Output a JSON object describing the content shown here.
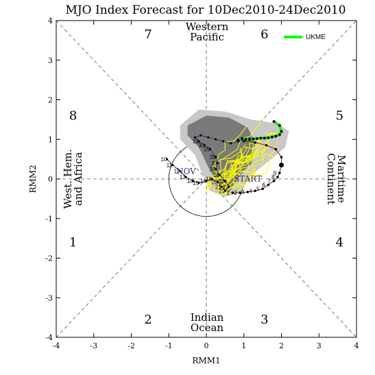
{
  "chart_data": {
    "type": "scatter",
    "title": "MJO Index Forecast for 10Dec2010-24Dec2010",
    "xlabel": "RMM1",
    "ylabel": "RMM2",
    "xlim": [
      -4,
      4
    ],
    "ylim": [
      -4,
      4
    ],
    "x_ticks": [
      "-4",
      "-3",
      "-2",
      "-1",
      "0",
      "1",
      "2",
      "3",
      "4"
    ],
    "y_ticks": [
      "-4",
      "-3",
      "-2",
      "-1",
      "0",
      "1",
      "2",
      "3",
      "4"
    ],
    "grid": "diagonal phase lines and zero axes (dashed)",
    "legend": {
      "position": "top-right",
      "entries": [
        {
          "name": "UKME",
          "color": "#00ff00"
        }
      ]
    },
    "phases": [
      {
        "label": "1",
        "x": -3.55,
        "y": -1.6
      },
      {
        "label": "2",
        "x": -1.55,
        "y": -3.55
      },
      {
        "label": "3",
        "x": 1.55,
        "y": -3.55
      },
      {
        "label": "4",
        "x": 3.55,
        "y": -1.6
      },
      {
        "label": "5",
        "x": 3.55,
        "y": 1.6
      },
      {
        "label": "6",
        "x": 1.55,
        "y": 3.65
      },
      {
        "label": "7",
        "x": -1.55,
        "y": 3.65
      },
      {
        "label": "8",
        "x": -3.55,
        "y": 1.6
      }
    ],
    "regions": {
      "top": [
        "Western",
        "Pacific"
      ],
      "bottom": [
        "Indian",
        "Ocean"
      ],
      "left": [
        "West. Hem.",
        "and Africa"
      ],
      "right": [
        "Maritime",
        "Continent"
      ]
    },
    "annotations": [
      "START",
      "NOV"
    ],
    "colors": {
      "observed": "#7a2020",
      "analysis": "#3a2a7a",
      "forecast": "#00ff00",
      "members": "#ffff00",
      "spread_outer": "#c8c8c8",
      "spread_inner": "#7a7a7a"
    },
    "series": [
      {
        "name": "UKME",
        "points": [
          [
            0.85,
            0.98
          ],
          [
            0.95,
            1.02
          ],
          [
            1.05,
            1.0
          ],
          [
            1.15,
            1.0
          ],
          [
            1.25,
            1.01
          ],
          [
            1.35,
            1.02
          ],
          [
            1.45,
            1.03
          ],
          [
            1.55,
            1.03
          ],
          [
            1.65,
            1.04
          ],
          [
            1.75,
            1.06
          ],
          [
            1.85,
            1.08
          ],
          [
            1.95,
            1.12
          ],
          [
            2.0,
            1.2
          ],
          [
            1.95,
            1.35
          ],
          [
            1.8,
            1.45
          ]
        ]
      }
    ],
    "observed_path": {
      "points": [
        [
          0.7,
          -0.35
        ],
        [
          0.9,
          -0.35
        ],
        [
          1.1,
          -0.33
        ],
        [
          1.3,
          -0.3
        ],
        [
          1.5,
          -0.25
        ],
        [
          1.65,
          -0.15
        ],
        [
          1.8,
          -0.05
        ],
        [
          1.9,
          0.05
        ],
        [
          1.95,
          0.15
        ],
        [
          2.0,
          0.35
        ],
        [
          2.0,
          0.55
        ],
        [
          1.85,
          0.75
        ],
        [
          1.6,
          0.85
        ],
        [
          1.3,
          0.92
        ],
        [
          1.0,
          0.96
        ]
      ],
      "labels": [
        "1",
        "2",
        "3",
        "4",
        "5",
        "6",
        "7",
        "8",
        "9"
      ]
    },
    "analysis_path": {
      "points": [
        [
          -1.05,
          0.5
        ],
        [
          -0.9,
          0.35
        ],
        [
          -0.7,
          0.2
        ],
        [
          -0.55,
          0.05
        ],
        [
          -0.35,
          -0.05
        ],
        [
          -0.2,
          -0.1
        ],
        [
          0.0,
          -0.05
        ],
        [
          0.15,
          0.0
        ],
        [
          0.3,
          -0.08
        ],
        [
          0.4,
          -0.2
        ],
        [
          0.5,
          -0.3
        ],
        [
          0.6,
          -0.2
        ],
        [
          0.5,
          -0.05
        ],
        [
          0.35,
          0.1
        ],
        [
          0.25,
          0.25
        ],
        [
          0.3,
          0.4
        ],
        [
          0.25,
          0.55
        ],
        [
          0.1,
          0.75
        ],
        [
          -0.05,
          0.85
        ],
        [
          -0.2,
          0.95
        ],
        [
          -0.3,
          1.05
        ],
        [
          -0.15,
          1.1
        ],
        [
          0.05,
          1.05
        ],
        [
          0.25,
          1.0
        ],
        [
          0.45,
          0.95
        ],
        [
          0.65,
          0.9
        ],
        [
          0.85,
          0.95
        ],
        [
          1.05,
          1.0
        ]
      ],
      "labels": [
        "10",
        "11",
        "12",
        "13",
        "14",
        "15",
        "16",
        "18",
        "20",
        "21",
        "22",
        "23",
        "24",
        "25",
        "26",
        "27",
        "28",
        "29",
        "30",
        "31"
      ]
    }
  }
}
